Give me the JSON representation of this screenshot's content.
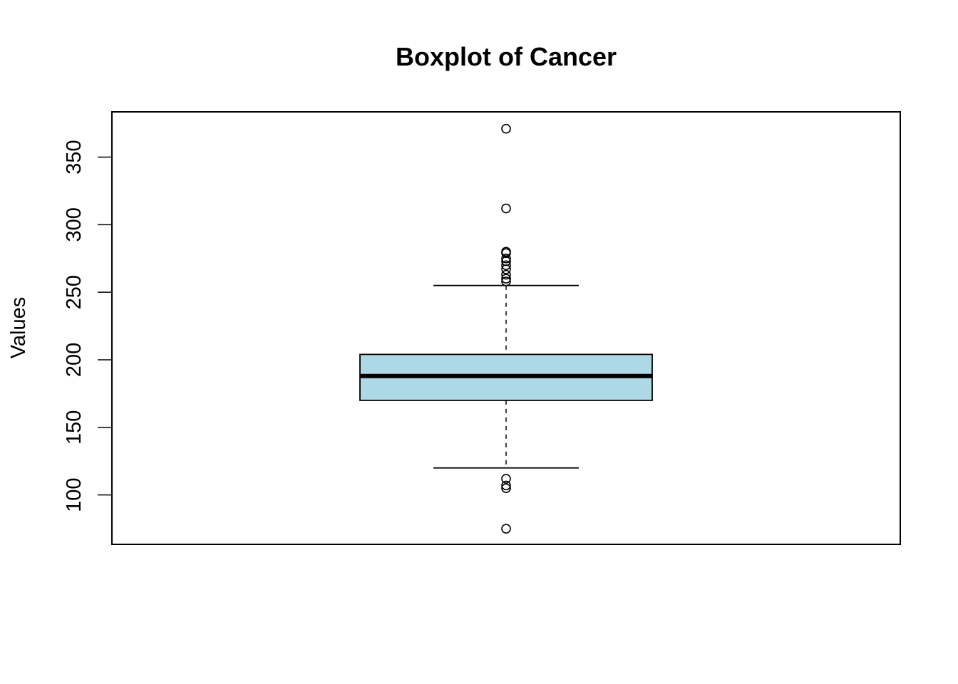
{
  "chart_data": {
    "type": "boxplot",
    "title": "Boxplot of Cancer",
    "xlabel": "",
    "ylabel": "Values",
    "ylim": [
      75,
      375
    ],
    "yticks": [
      100,
      150,
      200,
      250,
      300,
      350
    ],
    "grid": false,
    "legend": "none",
    "box_fill": "#add8e6",
    "line_color": "#000000",
    "box": {
      "min_whisker": 120,
      "q1": 170,
      "median": 188,
      "q3": 204,
      "max_whisker": 255
    },
    "outliers": [
      371,
      312,
      280,
      279,
      275,
      273,
      270,
      267,
      263,
      260,
      258,
      112,
      107,
      105,
      75
    ]
  }
}
